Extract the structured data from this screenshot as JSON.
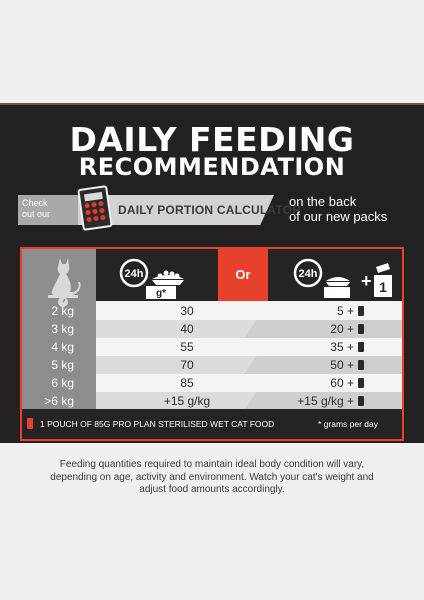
{
  "title_line1": "DAILY FEEDING",
  "title_line2": "RECOMMENDATION",
  "banner": {
    "check_line1": "Check",
    "check_line2": "out our",
    "calculator_prefix": "DAILY PORTION",
    "calculator_label": "CALCULATOR",
    "promo_line1": "on the back",
    "promo_line2": "of our new packs"
  },
  "table": {
    "dry_hours": "24h",
    "dry_unit": "g*",
    "or_label": "Or",
    "wet_hours": "24h",
    "wet_plus": "+",
    "wet_pouch_count": "1",
    "rows": [
      {
        "weight": "2 kg",
        "dry": "30",
        "wet": "5 +"
      },
      {
        "weight": "3 kg",
        "dry": "40",
        "wet": "20 +"
      },
      {
        "weight": "4 kg",
        "dry": "55",
        "wet": "35 +"
      },
      {
        "weight": "5 kg",
        "dry": "70",
        "wet": "50 +"
      },
      {
        "weight": "6 kg",
        "dry": "85",
        "wet": "60 +"
      },
      {
        "weight": ">6 kg",
        "dry": "+15 g/kg",
        "wet": "+15 g/kg +"
      }
    ],
    "footer_text": "1 POUCH OF 85G PRO PLAN STERILISED WET CAT FOOD",
    "footer_note": "* grams per day"
  },
  "bottom_text_line1": "Feeding quantities required to maintain ideal body condition will vary,",
  "bottom_text_line2": "depending on age, activity and environment. Watch your cat's weight and",
  "bottom_text_line3": "adjust food amounts accordingly.",
  "colors": {
    "accent": "#e5412d",
    "panel": "#222020",
    "header_dark": "#252323"
  }
}
